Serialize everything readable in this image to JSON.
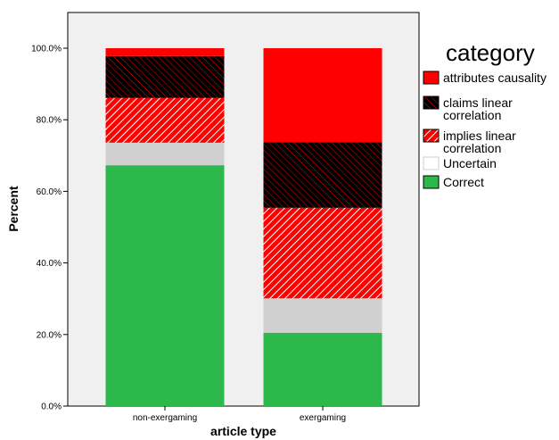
{
  "chart_data": {
    "type": "bar",
    "stacked": true,
    "categories": [
      "non-exergaming",
      "exergaming"
    ],
    "xlabel": "article type",
    "ylabel": "Percent",
    "ylim": [
      0,
      100
    ],
    "yticks": [
      "0.0%",
      "20.0%",
      "40.0%",
      "60.0%",
      "80.0%",
      "100.0%"
    ],
    "grid": false,
    "legend": {
      "title": "category",
      "placement": "right"
    },
    "series": [
      {
        "name": "Correct",
        "values": [
          67.3,
          20.5
        ],
        "color": "#2db84c",
        "pattern": "solid"
      },
      {
        "name": "Uncertain",
        "values": [
          6.3,
          9.6
        ],
        "color": "#d0d0d0",
        "pattern": "solid"
      },
      {
        "name": "implies linear correlation",
        "values": [
          12.5,
          25.3
        ],
        "color": "#ff0000",
        "pattern": "hatch-light"
      },
      {
        "name": "claims linear correlation",
        "values": [
          11.7,
          18.3
        ],
        "color": "#000000",
        "pattern": "hatch-dark"
      },
      {
        "name": "attributes causality",
        "values": [
          2.2,
          26.3
        ],
        "color": "#ff0000",
        "pattern": "solid"
      }
    ],
    "legend_order": [
      {
        "name": "attributes causality",
        "lines": [
          "attributes causality"
        ]
      },
      {
        "name": "claims linear correlation",
        "lines": [
          "claims linear",
          "correlation"
        ]
      },
      {
        "name": "implies linear correlation",
        "lines": [
          "implies linear",
          "correlation"
        ]
      },
      {
        "name": "Uncertain",
        "lines": [
          "Uncertain"
        ]
      },
      {
        "name": "Correct",
        "lines": [
          "Correct"
        ]
      }
    ]
  }
}
